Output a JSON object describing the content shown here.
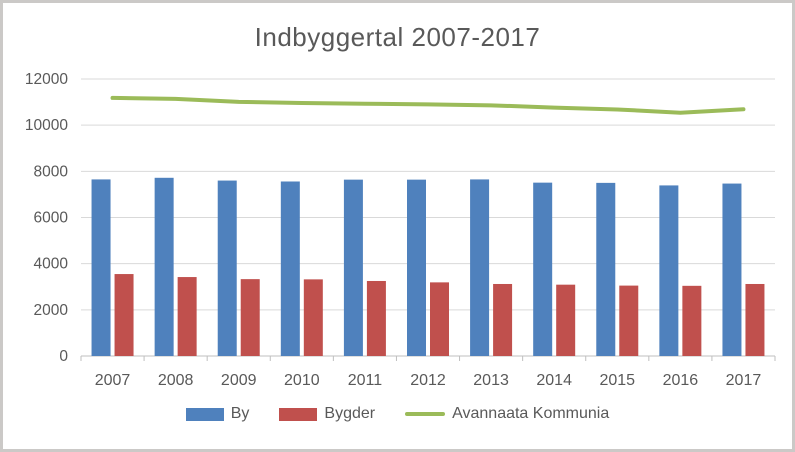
{
  "title": "Indbyggertal 2007-2017",
  "colors": {
    "by": "#4F81BD",
    "bygder": "#C0504D",
    "line": "#9BBB59",
    "text": "#595959",
    "gridline": "#D9D9D9",
    "axis": "#BFBFBF",
    "frame_border": "#CBC9C7",
    "background": "#FFFFFF"
  },
  "chart_data": {
    "type": "bar",
    "title": "Indbyggertal 2007-2017",
    "xlabel": "",
    "ylabel": "",
    "categories": [
      "2007",
      "2008",
      "2009",
      "2010",
      "2011",
      "2012",
      "2013",
      "2014",
      "2015",
      "2016",
      "2017"
    ],
    "series": [
      {
        "name": "By",
        "type": "bar",
        "color": "#4F81BD",
        "values": [
          7650,
          7720,
          7600,
          7560,
          7640,
          7640,
          7650,
          7510,
          7500,
          7390,
          7470
        ]
      },
      {
        "name": "Bygder",
        "type": "bar",
        "color": "#C0504D",
        "values": [
          3550,
          3420,
          3330,
          3320,
          3250,
          3190,
          3120,
          3090,
          3050,
          3040,
          3120
        ]
      },
      {
        "name": "Avannaata Kommunia",
        "type": "line",
        "color": "#9BBB59",
        "values": [
          11180,
          11140,
          11010,
          10960,
          10930,
          10900,
          10860,
          10760,
          10680,
          10540,
          10690
        ]
      }
    ],
    "ylim": [
      0,
      12000
    ],
    "ytick_step": 2000,
    "ytick_labels": [
      "0",
      "2000",
      "4000",
      "6000",
      "8000",
      "10000",
      "12000"
    ],
    "grid": true,
    "legend_position": "bottom"
  }
}
